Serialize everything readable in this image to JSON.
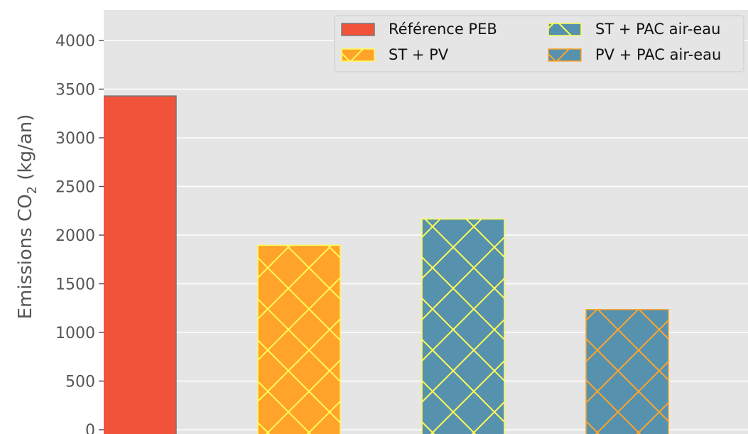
{
  "chart_data": {
    "type": "bar",
    "title": "",
    "xlabel": "",
    "ylabel": {
      "prefix": "Emissions CO",
      "subscript": "2",
      "suffix": " (kg/an)"
    },
    "ylim": [
      0,
      4300
    ],
    "yticks": [
      "0",
      "500",
      "1000",
      "1500",
      "2000",
      "2500",
      "3000",
      "3500",
      "4000"
    ],
    "grid": true,
    "legend_placement": "top-right",
    "series": [
      {
        "name": "Référence PEB",
        "value": 3430,
        "fill": "#f0533a",
        "edge": "#777777",
        "hatch": false,
        "hatch_color": ""
      },
      {
        "name": "ST + PV",
        "value": 1895,
        "fill": "#ffa32b",
        "edge": "#fffb55",
        "hatch": true,
        "hatch_color": "#fffb55"
      },
      {
        "name": "ST + PAC air-eau",
        "value": 2165,
        "fill": "#5692ae",
        "edge": "#fffb55",
        "hatch": true,
        "hatch_color": "#fffb55"
      },
      {
        "name": "PV + PAC air-eau",
        "value": 1235,
        "fill": "#5692ae",
        "edge": "#ffa32b",
        "hatch": true,
        "hatch_color": "#ffa32b"
      }
    ],
    "colors": {
      "plot_background": "#e5e5e5",
      "grid": "#ffffff",
      "axis_text": "#555555"
    }
  }
}
